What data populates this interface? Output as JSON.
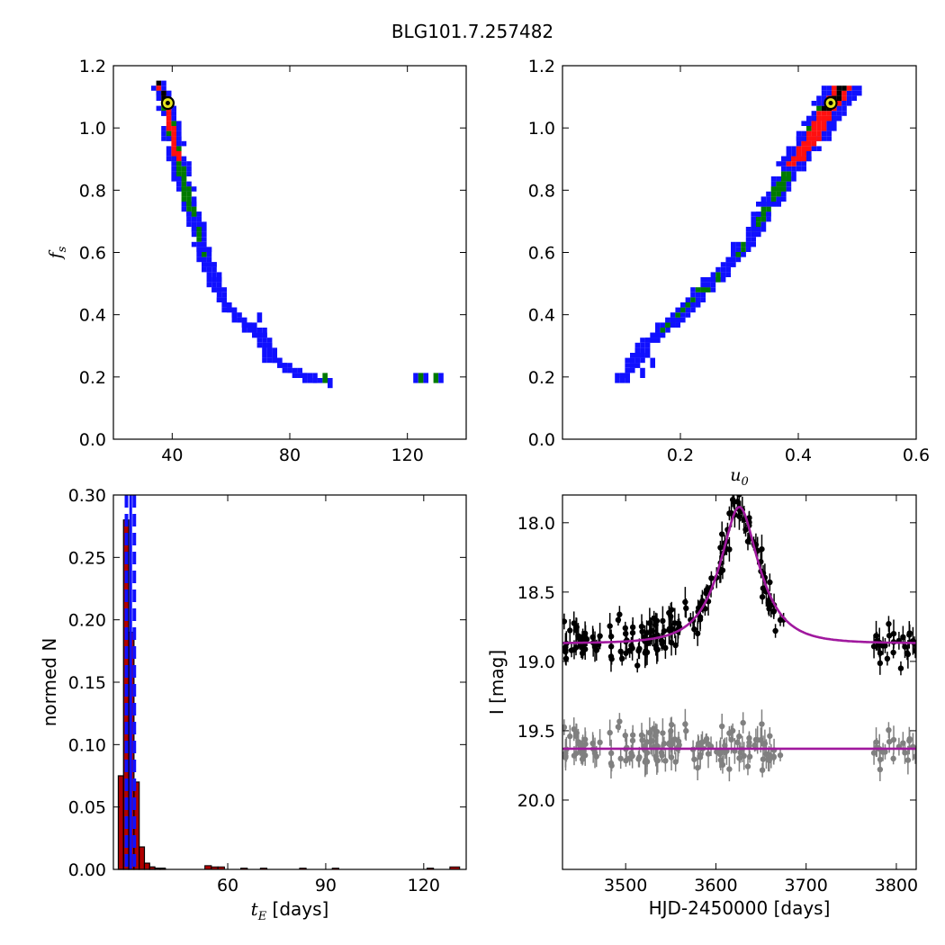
{
  "title": "BLG101.7.257482",
  "chart_data": [
    {
      "id": "tE_fs",
      "type": "heatmap",
      "title": "",
      "xlabel": "",
      "ylabel": "f_s",
      "xlim": [
        20,
        140
      ],
      "ylim": [
        0.0,
        1.2
      ],
      "xticks": [
        40,
        80,
        120
      ],
      "yticks": [
        0.0,
        0.2,
        0.4,
        0.6,
        0.8,
        1.0,
        1.2
      ],
      "xticklabels": [
        "40",
        "80",
        "120"
      ],
      "yticklabels": [
        "0.0",
        "0.2",
        "0.4",
        "0.6",
        "0.8",
        "1.0",
        "1.2"
      ],
      "colors": {
        "outer": "#1010ff",
        "mid": "#007a00",
        "inner": "#ff1010",
        "core": "#000000"
      },
      "best_fit": {
        "x": 38.5,
        "y": 1.08
      },
      "ridge": [
        [
          35.5,
          1.14
        ],
        [
          38,
          1.08
        ],
        [
          40.5,
          0.96
        ],
        [
          42.5,
          0.88
        ],
        [
          44,
          0.82
        ],
        [
          45.5,
          0.76
        ],
        [
          47.5,
          0.72
        ],
        [
          49.5,
          0.64
        ],
        [
          51.5,
          0.58
        ],
        [
          54,
          0.52
        ],
        [
          57,
          0.45
        ],
        [
          61,
          0.41
        ],
        [
          66,
          0.37
        ],
        [
          71,
          0.32
        ],
        [
          74,
          0.26
        ],
        [
          79,
          0.22
        ],
        [
          85,
          0.2
        ],
        [
          92,
          0.19
        ]
      ],
      "widths_x": [
        1.6,
        2.2,
        2.4,
        2.4,
        2.2,
        2.0,
        2.0,
        1.8,
        1.6,
        1.6,
        1.8,
        1.6,
        1.4,
        1.2,
        1.0,
        1.2,
        2.6,
        2.6
      ],
      "green_until": 0.3,
      "red_until": 0.12,
      "islands": [
        [
          122,
          0.2,
          "outer"
        ],
        [
          124,
          0.21,
          "mid"
        ],
        [
          127,
          0.21,
          "outer"
        ],
        [
          130,
          0.21,
          "mid"
        ],
        [
          132,
          0.21,
          "outer"
        ],
        [
          61,
          0.4,
          "outer"
        ],
        [
          69,
          0.4,
          "outer"
        ],
        [
          71,
          0.35,
          "outer"
        ],
        [
          75,
          0.28,
          "outer"
        ],
        [
          88,
          0.2,
          "outer"
        ],
        [
          92,
          0.2,
          "mid"
        ],
        [
          94,
          0.19,
          "outer"
        ],
        [
          64,
          0.36,
          "outer"
        ]
      ]
    },
    {
      "id": "u0_fs",
      "type": "heatmap",
      "title": "",
      "xlabel": "u_0",
      "ylabel": "",
      "xlim": [
        0.0,
        0.6
      ],
      "ylim": [
        0.0,
        1.2
      ],
      "xticks": [
        0.2,
        0.4,
        0.6
      ],
      "yticks": [
        0.0,
        0.2,
        0.4,
        0.6,
        0.8,
        1.0,
        1.2
      ],
      "xticklabels": [
        "0.2",
        "0.4",
        "0.6"
      ],
      "yticklabels": [
        "0.0",
        "0.2",
        "0.4",
        "0.6",
        "0.8",
        "1.0",
        "1.2"
      ],
      "colors": {
        "outer": "#1010ff",
        "mid": "#007a00",
        "inner": "#ff1010",
        "core": "#000000"
      },
      "best_fit": {
        "x": 0.455,
        "y": 1.08
      },
      "ridge": [
        [
          0.1,
          0.19
        ],
        [
          0.12,
          0.24
        ],
        [
          0.14,
          0.3
        ],
        [
          0.17,
          0.35
        ],
        [
          0.2,
          0.4
        ],
        [
          0.23,
          0.46
        ],
        [
          0.26,
          0.52
        ],
        [
          0.29,
          0.58
        ],
        [
          0.31,
          0.62
        ],
        [
          0.33,
          0.68
        ],
        [
          0.35,
          0.75
        ],
        [
          0.37,
          0.82
        ],
        [
          0.39,
          0.88
        ],
        [
          0.42,
          0.96
        ],
        [
          0.45,
          1.06
        ],
        [
          0.48,
          1.14
        ]
      ],
      "widths_x": [
        0.008,
        0.01,
        0.012,
        0.01,
        0.012,
        0.012,
        0.012,
        0.008,
        0.006,
        0.01,
        0.014,
        0.016,
        0.02,
        0.024,
        0.028,
        0.03
      ],
      "green_until": 0.45,
      "red_until": 0.2,
      "islands": [
        [
          0.13,
          0.28,
          "outer"
        ],
        [
          0.14,
          0.22,
          "outer"
        ],
        [
          0.155,
          0.26,
          "outer"
        ],
        [
          0.32,
          0.7,
          "outer"
        ],
        [
          0.29,
          0.62,
          "outer"
        ]
      ]
    },
    {
      "id": "tE_hist",
      "type": "bar",
      "title": "",
      "xlabel": "t_E [days]",
      "ylabel": "normed N",
      "xlim": [
        25,
        133
      ],
      "ylim": [
        0.0,
        0.3
      ],
      "xticks": [
        60,
        90,
        120
      ],
      "yticks": [
        0.0,
        0.05,
        0.1,
        0.15,
        0.2,
        0.25,
        0.3
      ],
      "xticklabels": [
        "60",
        "90",
        "120"
      ],
      "yticklabels": [
        "0.00",
        "0.05",
        "0.10",
        "0.15",
        "0.20",
        "0.25",
        "0.30"
      ],
      "bin_edges": [
        26.5,
        28.1,
        29.7,
        31.3,
        32.9,
        34.5,
        36.1,
        37.7,
        39.3,
        40.9,
        42.5
      ],
      "bin_values": [
        0.075,
        0.28,
        0.19,
        0.07,
        0.018,
        0.005,
        0.002,
        0.001,
        0.001,
        0.0,
        0.0
      ],
      "tail_bins": [
        [
          53,
          55,
          0.003
        ],
        [
          55,
          57,
          0.002
        ],
        [
          57,
          59,
          0.002
        ],
        [
          64,
          66,
          0.001
        ],
        [
          70,
          72,
          0.001
        ],
        [
          82,
          84,
          0.001
        ],
        [
          92,
          94,
          0.001
        ],
        [
          121,
          123,
          0.001
        ],
        [
          128,
          131,
          0.002
        ]
      ],
      "bar_color": "#b00000",
      "vlines": {
        "color": "#1010ff",
        "dashed": [
          29.0,
          31.4
        ],
        "solid": [
          30.3
        ]
      }
    },
    {
      "id": "lightcurve",
      "type": "scatter",
      "title": "",
      "xlabel": "HJD-2450000 [days]",
      "ylabel": "I [mag]",
      "xlim": [
        3430,
        3822
      ],
      "ylim": [
        20.5,
        17.8
      ],
      "xticks": [
        3500,
        3600,
        3700,
        3800
      ],
      "yticks": [
        18.0,
        18.5,
        19.0,
        19.5,
        20.0
      ],
      "xticklabels": [
        "3500",
        "3600",
        "3700",
        "3800"
      ],
      "yticklabels": [
        "18.0",
        "18.5",
        "19.0",
        "19.5",
        "20.0"
      ],
      "model": {
        "t0": 3626,
        "tE": 38.5,
        "u0": 0.455,
        "fs": 1.08,
        "baseline": 18.87,
        "color": "#a0189e"
      },
      "residual_baseline": 19.63,
      "series": [
        {
          "color": "#000000"
        },
        {
          "color": "#808080"
        }
      ],
      "data_count": 170,
      "data_sample": [
        [
          3434,
          18.98
        ],
        [
          3440,
          18.92
        ],
        [
          3451,
          18.88
        ],
        [
          3457,
          18.84
        ],
        [
          3470,
          18.88
        ],
        [
          3484,
          18.82
        ],
        [
          3496,
          18.98
        ],
        [
          3500,
          18.8
        ],
        [
          3513,
          19.03
        ],
        [
          3527,
          18.84
        ],
        [
          3541,
          18.86
        ],
        [
          3548,
          18.65
        ],
        [
          3560,
          18.76
        ],
        [
          3572,
          18.7
        ],
        [
          3588,
          18.62
        ],
        [
          3595,
          18.4
        ],
        [
          3605,
          18.18
        ],
        [
          3613,
          18.05
        ],
        [
          3620,
          17.85
        ],
        [
          3625,
          17.9
        ],
        [
          3633,
          18.05
        ],
        [
          3642,
          18.15
        ],
        [
          3650,
          18.35
        ],
        [
          3659,
          18.62
        ],
        [
          3666,
          18.78
        ],
        [
          3675,
          18.7
        ],
        [
          3780,
          18.88
        ],
        [
          3790,
          18.98
        ],
        [
          3797,
          18.86
        ],
        [
          3805,
          19.05
        ],
        [
          3812,
          18.94
        ],
        [
          3820,
          18.87
        ]
      ]
    }
  ]
}
